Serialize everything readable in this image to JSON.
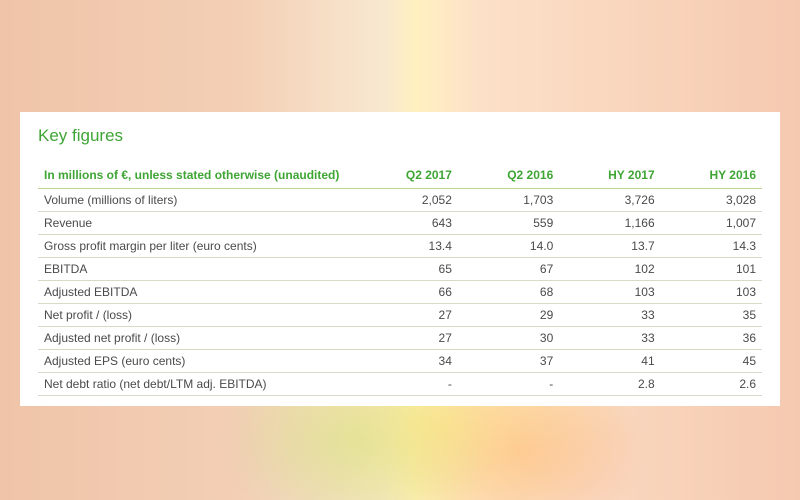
{
  "panel": {
    "title": "Key figures",
    "background_color": "#ffffff",
    "title_color": "#3fa535",
    "title_fontsize": 17
  },
  "table": {
    "header_color": "#3fa535",
    "header_border_color": "#b8d88a",
    "row_border_color": "#d9d9c8",
    "text_color": "#4a4a4a",
    "fontsize": 12,
    "columns": [
      "In millions of €, unless stated otherwise (unaudited)",
      "Q2 2017",
      "Q2 2016",
      "HY 2017",
      "HY 2016"
    ],
    "rows": [
      {
        "label": "Volume (millions of liters)",
        "vals": [
          "2,052",
          "1,703",
          "3,726",
          "3,028"
        ]
      },
      {
        "label": "Revenue",
        "vals": [
          "643",
          "559",
          "1,166",
          "1,007"
        ]
      },
      {
        "label": "Gross profit margin per liter (euro cents)",
        "vals": [
          "13.4",
          "14.0",
          "13.7",
          "14.3"
        ]
      },
      {
        "label": "EBITDA",
        "vals": [
          "65",
          "67",
          "102",
          "101"
        ]
      },
      {
        "label": "Adjusted EBITDA",
        "vals": [
          "66",
          "68",
          "103",
          "103"
        ]
      },
      {
        "label": "Net profit / (loss)",
        "vals": [
          "27",
          "29",
          "33",
          "35"
        ]
      },
      {
        "label": "Adjusted net profit / (loss)",
        "vals": [
          "27",
          "30",
          "33",
          "36"
        ]
      },
      {
        "label": "Adjusted EPS (euro cents)",
        "vals": [
          "34",
          "37",
          "41",
          "45"
        ]
      },
      {
        "label": "Net debt ratio (net debt/LTM adj. EBITDA)",
        "vals": [
          "-",
          "-",
          "2.8",
          "2.6"
        ]
      }
    ]
  }
}
